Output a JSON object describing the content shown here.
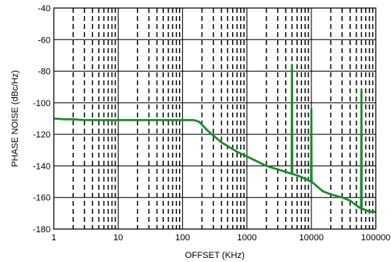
{
  "chart_data": {
    "type": "line",
    "title": "",
    "xlabel": "OFFSET (KHz)",
    "ylabel": "PHASE NOISE (dBc/Hz)",
    "x_scale": "log",
    "xlim": [
      1,
      100000
    ],
    "ylim": [
      -180,
      -40
    ],
    "x_ticks": [
      1,
      10,
      100,
      1000,
      10000,
      100000
    ],
    "x_tick_labels": [
      "1",
      "10",
      "100",
      "1000",
      "10000",
      "100000"
    ],
    "y_ticks": [
      -180,
      -160,
      -140,
      -120,
      -100,
      -80,
      -60,
      -40
    ],
    "y_tick_labels": [
      "-180",
      "-160",
      "-140",
      "-120",
      "-100",
      "-80",
      "-60",
      "-40"
    ],
    "grid": "major solid, minor dashed",
    "line_color": "#1a8a2a",
    "series": [
      {
        "values": [
          [
            1,
            -110
          ],
          [
            1.5,
            -110.5
          ],
          [
            2,
            -110.5
          ],
          [
            3,
            -111
          ],
          [
            5,
            -111
          ],
          [
            10,
            -111
          ],
          [
            20,
            -111
          ],
          [
            50,
            -111
          ],
          [
            100,
            -111
          ],
          [
            150,
            -111
          ],
          [
            180,
            -112
          ],
          [
            250,
            -118
          ],
          [
            400,
            -125
          ],
          [
            700,
            -131
          ],
          [
            1000,
            -134
          ],
          [
            2000,
            -140
          ],
          [
            3500,
            -143
          ],
          [
            4950,
            -145
          ],
          [
            5000,
            -76
          ],
          [
            5050,
            -145
          ],
          [
            7000,
            -147
          ],
          [
            9900,
            -150
          ],
          [
            10000,
            -104
          ],
          [
            10100,
            -150
          ],
          [
            15000,
            -156
          ],
          [
            20000,
            -158
          ],
          [
            30000,
            -160
          ],
          [
            40000,
            -162
          ],
          [
            50000,
            -165
          ],
          [
            59000,
            -167
          ],
          [
            60000,
            -92
          ],
          [
            60500,
            -167
          ],
          [
            80000,
            -169
          ],
          [
            100000,
            -169
          ]
        ]
      }
    ]
  }
}
